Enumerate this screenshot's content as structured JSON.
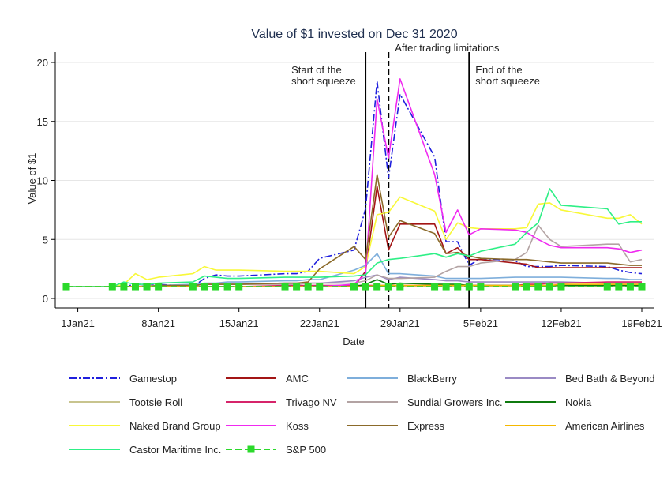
{
  "chart_data": {
    "type": "line",
    "title": "Value of $1 invested on Dec 31 2020",
    "xlabel": "Date",
    "ylabel": "Value of $1",
    "ylim": [
      0,
      20
    ],
    "yticks": [
      0,
      5,
      10,
      15,
      20
    ],
    "xlim": [
      "2020-12-31",
      "2021-02-19"
    ],
    "xticks": [
      {
        "date": "2021-01-01",
        "label": "1Jan21"
      },
      {
        "date": "2021-01-08",
        "label": "8Jan21"
      },
      {
        "date": "2021-01-15",
        "label": "15Jan21"
      },
      {
        "date": "2021-01-22",
        "label": "22Jan21"
      },
      {
        "date": "2021-01-29",
        "label": "29Jan21"
      },
      {
        "date": "2021-02-05",
        "label": "5Feb21"
      },
      {
        "date": "2021-02-12",
        "label": "12Feb21"
      },
      {
        "date": "2021-02-19",
        "label": "19Feb21"
      }
    ],
    "grid": true,
    "legend_position": "bottom",
    "annotations": [
      {
        "date": "2021-01-26",
        "label_lines": [
          "Start of the",
          "short squeeze"
        ],
        "style": "solid"
      },
      {
        "date": "2021-01-28",
        "label_lines": [
          "After trading limitations"
        ],
        "style": "dashed"
      },
      {
        "date": "2021-02-04",
        "label_lines": [
          "End of the",
          "short squeeze"
        ],
        "style": "solid"
      }
    ],
    "x": [
      "2020-12-31",
      "2021-01-04",
      "2021-01-05",
      "2021-01-06",
      "2021-01-07",
      "2021-01-08",
      "2021-01-11",
      "2021-01-12",
      "2021-01-13",
      "2021-01-14",
      "2021-01-15",
      "2021-01-19",
      "2021-01-20",
      "2021-01-21",
      "2021-01-22",
      "2021-01-25",
      "2021-01-26",
      "2021-01-27",
      "2021-01-28",
      "2021-01-29",
      "2021-02-01",
      "2021-02-02",
      "2021-02-03",
      "2021-02-04",
      "2021-02-05",
      "2021-02-08",
      "2021-02-09",
      "2021-02-10",
      "2021-02-11",
      "2021-02-12",
      "2021-02-16",
      "2021-02-17",
      "2021-02-18",
      "2021-02-19"
    ],
    "series": [
      {
        "name": "Gamestop",
        "color": "#1f1fdd",
        "dash": "9,3,2,3",
        "values": [
          1,
          1.0,
          1.0,
          1.2,
          1.2,
          1.2,
          1.0,
          1.7,
          2.0,
          1.9,
          1.9,
          2.1,
          2.1,
          2.3,
          3.4,
          4.1,
          7.6,
          18.4,
          10.2,
          17.3,
          12.0,
          4.8,
          4.8,
          2.8,
          3.4,
          3.2,
          2.7,
          2.7,
          2.7,
          2.8,
          2.7,
          2.4,
          2.2,
          2.1
        ]
      },
      {
        "name": "AMC",
        "color": "#a31515",
        "values": [
          1,
          1,
          1,
          1,
          1,
          1,
          1,
          1,
          1,
          1,
          1,
          1,
          1,
          1,
          1,
          1,
          2.3,
          9.5,
          4.1,
          6.3,
          6.3,
          3.8,
          4.3,
          3.3,
          3.3,
          3.0,
          2.9,
          2.6,
          2.6,
          2.6,
          2.6,
          2.6,
          2.6,
          2.6
        ]
      },
      {
        "name": "BlackBerry",
        "color": "#7eaedb",
        "values": [
          1,
          1,
          1,
          1.0,
          1.1,
          1.1,
          1.2,
          1.3,
          1.3,
          1.4,
          1.4,
          1.5,
          1.5,
          1.6,
          1.6,
          2.4,
          2.8,
          3.8,
          2.1,
          2.1,
          1.9,
          1.7,
          1.7,
          1.7,
          1.7,
          1.8,
          1.8,
          1.8,
          1.8,
          1.8,
          1.7,
          1.7,
          1.6,
          1.6
        ]
      },
      {
        "name": "Bed Bath & Beyond",
        "color": "#9a8ac4",
        "values": [
          1,
          1.0,
          1.0,
          1.0,
          1.1,
          1.1,
          1.1,
          1.2,
          1.2,
          1.2,
          1.2,
          1.3,
          1.3,
          1.3,
          1.3,
          1.5,
          1.8,
          2.0,
          1.6,
          1.8,
          1.6,
          1.5,
          1.5,
          1.4,
          1.4,
          1.4,
          1.4,
          1.4,
          1.4,
          1.4,
          1.3,
          1.3,
          1.3,
          1.3
        ]
      },
      {
        "name": "Tootsie Roll",
        "color": "#c8c48e",
        "values": [
          1,
          1,
          1,
          1,
          1,
          1,
          1,
          1,
          1,
          1,
          1,
          1,
          1,
          1,
          1,
          1,
          1.0,
          1.0,
          1.0,
          1.0,
          1.0,
          1.0,
          1.0,
          1.0,
          1.0,
          1.0,
          1.0,
          1.0,
          1.0,
          1.0,
          1.0,
          1.0,
          1.0,
          1.0
        ]
      },
      {
        "name": "Trivago NV",
        "color": "#d6246a",
        "values": [
          1,
          1.0,
          1.0,
          1.0,
          1.0,
          1.0,
          1.0,
          1.0,
          1.0,
          1.0,
          1.0,
          1.1,
          1.1,
          1.1,
          1.1,
          1.1,
          1.1,
          1.1,
          1.1,
          1.1,
          1.1,
          1.1,
          1.1,
          1.1,
          1.1,
          1.1,
          1.2,
          1.2,
          1.3,
          1.3,
          1.4,
          1.4,
          1.4,
          1.4
        ]
      },
      {
        "name": "Sundial Growers Inc.",
        "color": "#b3a3a3",
        "values": [
          1,
          1.0,
          1.0,
          1.0,
          1.1,
          1.1,
          1.1,
          1.2,
          1.2,
          1.2,
          1.2,
          1.2,
          1.2,
          1.3,
          1.3,
          1.3,
          1.5,
          2.0,
          1.7,
          1.7,
          1.8,
          2.3,
          2.7,
          2.7,
          3.0,
          3.3,
          3.9,
          6.2,
          5.0,
          4.4,
          4.6,
          4.6,
          3.1,
          3.3
        ]
      },
      {
        "name": "Nokia",
        "color": "#0f7a0f",
        "values": [
          1,
          1,
          1,
          1,
          1,
          1,
          1,
          1,
          1,
          1,
          1,
          1,
          1,
          1,
          1,
          1,
          1.2,
          1.6,
          1.2,
          1.3,
          1.2,
          1.2,
          1.2,
          1.1,
          1.1,
          1.1,
          1.1,
          1.1,
          1.1,
          1.1,
          1.1,
          1.1,
          1.1,
          1.1
        ]
      },
      {
        "name": "Naked Brand Group",
        "color": "#f8f838",
        "values": [
          1,
          1.0,
          1.2,
          2.1,
          1.6,
          1.8,
          2.1,
          2.7,
          2.4,
          2.4,
          2.4,
          2.3,
          2.3,
          2.3,
          2.3,
          2.1,
          2.7,
          7.1,
          7.3,
          8.6,
          7.4,
          5.0,
          6.4,
          6.0,
          5.9,
          5.9,
          6.0,
          8.0,
          8.1,
          7.5,
          6.8,
          6.8,
          7.1,
          6.3
        ]
      },
      {
        "name": "Koss",
        "color": "#f02af0",
        "values": [
          1,
          1,
          1,
          1,
          1,
          1,
          1,
          1,
          1,
          1,
          1,
          1,
          1,
          1,
          1,
          1.2,
          2.1,
          16.9,
          11.9,
          18.6,
          10.5,
          5.6,
          7.5,
          5.4,
          5.9,
          5.8,
          5.6,
          5.0,
          4.5,
          4.3,
          4.3,
          4.2,
          3.9,
          4.1
        ]
      },
      {
        "name": "Express",
        "color": "#8b6a2a",
        "values": [
          1,
          1.0,
          1.0,
          1.0,
          1.0,
          1.1,
          1.1,
          1.2,
          1.2,
          1.2,
          1.2,
          1.3,
          1.3,
          1.4,
          2.5,
          4.4,
          3.3,
          10.5,
          5.2,
          6.6,
          5.5,
          3.8,
          3.9,
          3.6,
          3.4,
          3.3,
          3.3,
          3.2,
          3.1,
          3.0,
          3.0,
          2.9,
          2.8,
          2.8
        ]
      },
      {
        "name": "American Airlines",
        "color": "#f5b800",
        "values": [
          1,
          1.0,
          1.0,
          1.0,
          1.0,
          1.0,
          1.0,
          1.0,
          1.0,
          1.0,
          1.0,
          1.0,
          1.0,
          1.0,
          1.0,
          1.0,
          1.0,
          1.1,
          1.1,
          1.1,
          1.1,
          1.1,
          1.1,
          1.1,
          1.1,
          1.1,
          1.1,
          1.1,
          1.1,
          1.2,
          1.2,
          1.2,
          1.2,
          1.2
        ]
      },
      {
        "name": "Castor Maritime Inc.",
        "color": "#2eef86",
        "values": [
          1,
          1.0,
          1.4,
          1.2,
          1.2,
          1.3,
          1.4,
          1.9,
          1.8,
          1.7,
          1.7,
          1.8,
          1.8,
          1.8,
          1.8,
          1.9,
          2.0,
          3.0,
          3.3,
          3.4,
          3.8,
          3.5,
          3.8,
          3.6,
          4.0,
          4.6,
          5.6,
          6.4,
          9.3,
          7.9,
          7.6,
          6.3,
          6.5,
          6.5
        ]
      },
      {
        "name": "S&P 500",
        "color": "#2bd92b",
        "dash": "8,4",
        "marker": "square",
        "values": [
          1,
          1.0,
          1.0,
          1.0,
          1.0,
          1.0,
          1.0,
          1.0,
          1.0,
          1.0,
          1.0,
          1.0,
          1.0,
          1.0,
          1.0,
          1.0,
          1.0,
          1.0,
          1.0,
          1.0,
          1.0,
          1.0,
          1.0,
          1.0,
          1.0,
          1.0,
          1.0,
          1.0,
          1.0,
          1.0,
          1.0,
          1.0,
          1.0,
          1.0
        ]
      }
    ]
  }
}
